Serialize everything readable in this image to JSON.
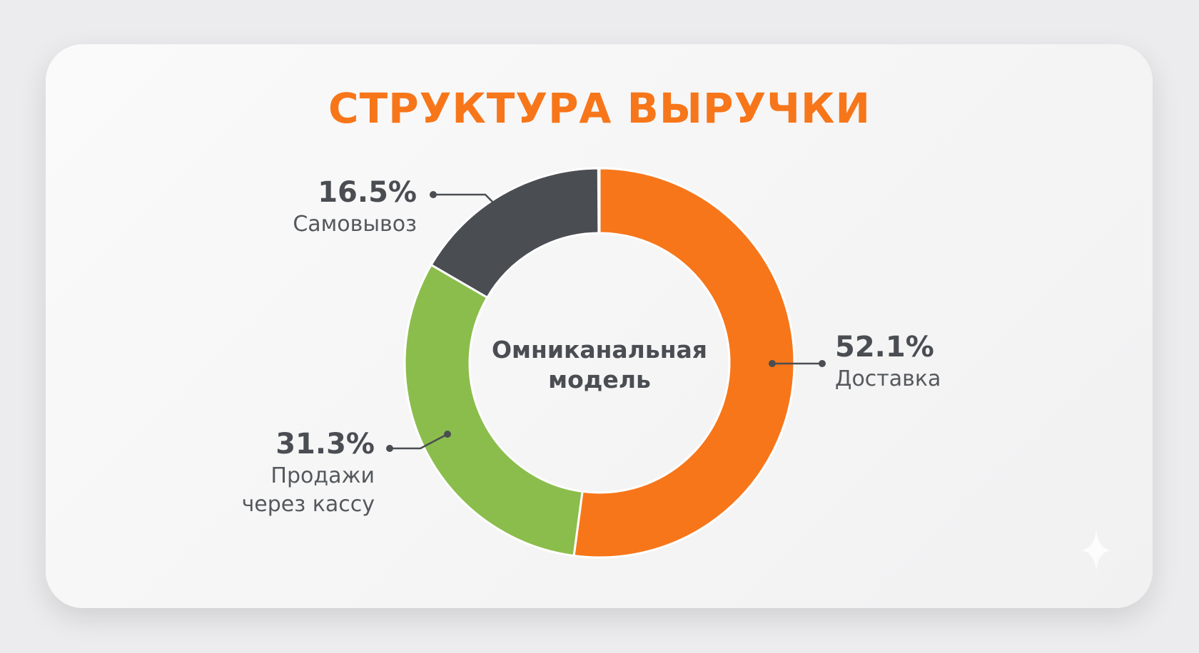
{
  "chart_data": {
    "type": "donut",
    "title": "СТРУКТУРА ВЫРУЧКИ",
    "center_label": "Омниканальная модель",
    "categories": [
      "Доставка",
      "Продажи через кассу",
      "Самовывоз"
    ],
    "values": [
      52.1,
      31.3,
      16.5
    ],
    "value_labels": [
      "52.1%",
      "31.3%",
      "16.5%"
    ],
    "colors": [
      "#f7761a",
      "#8bbd4c",
      "#4a4d52"
    ]
  }
}
